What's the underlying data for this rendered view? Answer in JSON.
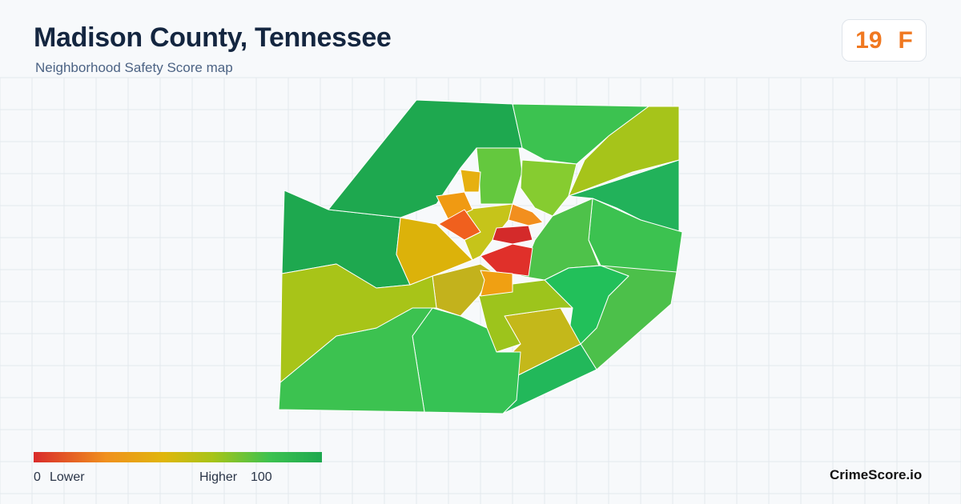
{
  "header": {
    "title": "Madison County, Tennessee",
    "subtitle": "Neighborhood Safety Score map"
  },
  "score": {
    "value": "19",
    "grade": "F"
  },
  "legend": {
    "min": "0",
    "min_label": "Lower",
    "max_label": "Higher",
    "max": "100"
  },
  "brand": "CrimeScore.io"
}
